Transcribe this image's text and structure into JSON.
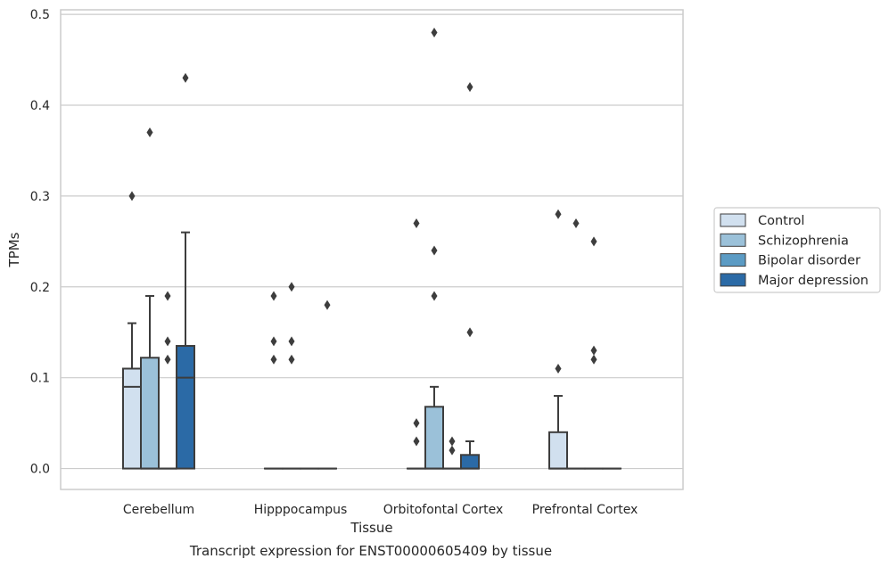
{
  "chart_data": {
    "type": "box",
    "title": "",
    "caption": "Transcript expression for ENST00000605409 by tissue",
    "xlabel": "Tissue",
    "ylabel": "TPMs",
    "ylim": [
      -0.023,
      0.505
    ],
    "yticks": [
      "0.0",
      "0.1",
      "0.2",
      "0.3",
      "0.4",
      "0.5"
    ],
    "ytick_values": [
      0.0,
      0.1,
      0.2,
      0.3,
      0.4,
      0.5
    ],
    "grid": "horizontal",
    "legend_position": "right",
    "categories": [
      "Cerebellum",
      "Hipppocampus",
      "Orbitofontal Cortex",
      "Prefrontal Cortex"
    ],
    "series": [
      {
        "name": "Control",
        "color": "#d1e0ef",
        "boxes": [
          {
            "q1": 0.0,
            "median": 0.09,
            "q3": 0.11,
            "whisker_low": 0.0,
            "whisker_high": 0.16,
            "outliers": [
              0.3
            ]
          },
          {
            "q1": 0.0,
            "median": 0.0,
            "q3": 0.0,
            "whisker_low": 0.0,
            "whisker_high": 0.0,
            "outliers": [
              0.12,
              0.14,
              0.19
            ]
          },
          {
            "q1": 0.0,
            "median": 0.0,
            "q3": 0.0,
            "whisker_low": 0.0,
            "whisker_high": 0.0,
            "outliers": [
              0.03,
              0.05,
              0.27
            ]
          },
          {
            "q1": 0.0,
            "median": 0.0,
            "q3": 0.04,
            "whisker_low": 0.0,
            "whisker_high": 0.08,
            "outliers": [
              0.11,
              0.28
            ]
          }
        ]
      },
      {
        "name": "Schizophrenia",
        "color": "#9bc1d9",
        "boxes": [
          {
            "q1": 0.0,
            "median": 0.0,
            "q3": 0.122,
            "whisker_low": 0.0,
            "whisker_high": 0.19,
            "outliers": [
              0.37
            ]
          },
          {
            "q1": 0.0,
            "median": 0.0,
            "q3": 0.0,
            "whisker_low": 0.0,
            "whisker_high": 0.0,
            "outliers": [
              0.12,
              0.14,
              0.2
            ]
          },
          {
            "q1": 0.0,
            "median": 0.0,
            "q3": 0.068,
            "whisker_low": 0.0,
            "whisker_high": 0.09,
            "outliers": [
              0.19,
              0.24,
              0.48
            ]
          },
          {
            "q1": 0.0,
            "median": 0.0,
            "q3": 0.0,
            "whisker_low": 0.0,
            "whisker_high": 0.0,
            "outliers": [
              0.27
            ]
          }
        ]
      },
      {
        "name": "Bipolar disorder",
        "color": "#5b9bc4",
        "boxes": [
          {
            "q1": 0.0,
            "median": 0.0,
            "q3": 0.0,
            "whisker_low": 0.0,
            "whisker_high": 0.0,
            "outliers": [
              0.12,
              0.14,
              0.19
            ]
          },
          {
            "q1": 0.0,
            "median": 0.0,
            "q3": 0.0,
            "whisker_low": 0.0,
            "whisker_high": 0.0,
            "outliers": []
          },
          {
            "q1": 0.0,
            "median": 0.0,
            "q3": 0.0,
            "whisker_low": 0.0,
            "whisker_high": 0.0,
            "outliers": [
              0.02,
              0.03
            ]
          },
          {
            "q1": 0.0,
            "median": 0.0,
            "q3": 0.0,
            "whisker_low": 0.0,
            "whisker_high": 0.0,
            "outliers": [
              0.12,
              0.13,
              0.25
            ]
          }
        ]
      },
      {
        "name": "Major depression",
        "color": "#2b6aa6",
        "boxes": [
          {
            "q1": 0.0,
            "median": 0.1,
            "q3": 0.135,
            "whisker_low": 0.0,
            "whisker_high": 0.26,
            "outliers": [
              0.43
            ]
          },
          {
            "q1": 0.0,
            "median": 0.0,
            "q3": 0.0,
            "whisker_low": 0.0,
            "whisker_high": 0.0,
            "outliers": [
              0.18
            ]
          },
          {
            "q1": 0.0,
            "median": 0.0,
            "q3": 0.015,
            "whisker_low": 0.0,
            "whisker_high": 0.03,
            "outliers": [
              0.15,
              0.42
            ]
          },
          {
            "q1": 0.0,
            "median": 0.0,
            "q3": 0.0,
            "whisker_low": 0.0,
            "whisker_high": 0.0,
            "outliers": []
          }
        ]
      }
    ]
  },
  "colors": {
    "grid": "#cccccc",
    "frame": "#cccccc",
    "box_edge": "#3d3d3d",
    "outlier": "#3d3d3d"
  }
}
